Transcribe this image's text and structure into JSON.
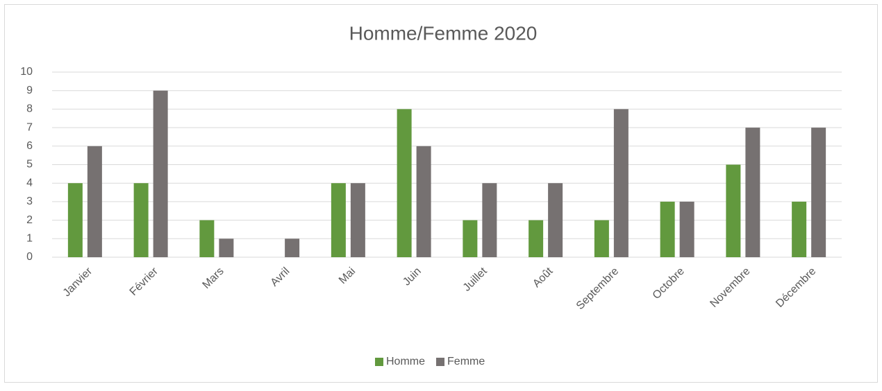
{
  "chart_data": {
    "type": "bar",
    "title": "Homme/Femme 2020",
    "categories": [
      "Janvier",
      "Février",
      "Mars",
      "Avril",
      "Mai",
      "Juin",
      "Juillet",
      "Août",
      "Septembre",
      "Octobre",
      "Novembre",
      "Décembre"
    ],
    "series": [
      {
        "name": "Homme",
        "color": "#62993e",
        "values": [
          4,
          4,
          2,
          0,
          4,
          8,
          2,
          2,
          2,
          3,
          5,
          3
        ]
      },
      {
        "name": "Femme",
        "color": "#767171",
        "values": [
          6,
          9,
          1,
          1,
          4,
          6,
          4,
          4,
          8,
          3,
          7,
          7
        ]
      }
    ],
    "ylim": [
      0,
      10
    ],
    "yticks": [
      0,
      1,
      2,
      3,
      4,
      5,
      6,
      7,
      8,
      9,
      10
    ],
    "grid": true,
    "legend": "bottom"
  }
}
